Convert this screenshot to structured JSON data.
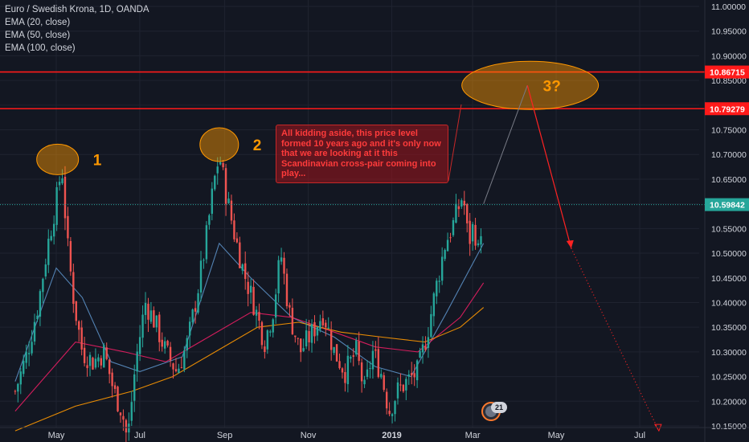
{
  "legend": {
    "symbol": "Euro / Swedish Krona, 1D, OANDA",
    "indicators": [
      "EMA (20, close)",
      "EMA (50, close)",
      "EMA (100, close)"
    ]
  },
  "colors": {
    "background": "#131722",
    "up": "#26a69a",
    "down": "#ef5350",
    "ema20": "#5b8fc4",
    "ema50": "#e91e63",
    "ema100": "#ff9800",
    "hline": "#ff1a1a",
    "current_price": "#26a69a",
    "projection": "#ff2222",
    "highlight": "#ff9800"
  },
  "annotations": {
    "callout_text": "All kidding aside, this price level formed 10 years ago and it's only now that we are looking at it this Scandinavian cross-pair coming into play...",
    "labels": [
      "1",
      "2",
      "3?"
    ],
    "badge_count": "21"
  },
  "chart_data": {
    "type": "candlestick",
    "title": "Euro / Swedish Krona, 1D, OANDA",
    "x_ticks": [
      "May",
      "Jul",
      "Sep",
      "Nov",
      "2019",
      "Mar",
      "May",
      "Jul"
    ],
    "y_ticks": [
      "11.00000",
      "10.95000",
      "10.90000",
      "10.85000",
      "10.80000",
      "10.75000",
      "10.70000",
      "10.65000",
      "10.60000",
      "10.55000",
      "10.50000",
      "10.45000",
      "10.40000",
      "10.35000",
      "10.30000",
      "10.25000",
      "10.20000",
      "10.15000"
    ],
    "ylim": [
      10.11,
      11.01
    ],
    "price_labels": [
      {
        "text": "10.86715",
        "value": 10.86715,
        "kind": "resistance"
      },
      {
        "text": "10.79279",
        "value": 10.79279,
        "kind": "resistance"
      },
      {
        "text": "10.59842",
        "value": 10.59842,
        "kind": "current"
      }
    ],
    "close_path": [
      {
        "date": "2018-04-01",
        "close": 10.22
      },
      {
        "date": "2018-04-10",
        "close": 10.3
      },
      {
        "date": "2018-04-18",
        "close": 10.4
      },
      {
        "date": "2018-04-25",
        "close": 10.52
      },
      {
        "date": "2018-05-02",
        "close": 10.62
      },
      {
        "date": "2018-05-05",
        "close": 10.68
      },
      {
        "date": "2018-05-09",
        "close": 10.52
      },
      {
        "date": "2018-05-14",
        "close": 10.4
      },
      {
        "date": "2018-05-20",
        "close": 10.3
      },
      {
        "date": "2018-05-28",
        "close": 10.28
      },
      {
        "date": "2018-06-05",
        "close": 10.3
      },
      {
        "date": "2018-06-12",
        "close": 10.22
      },
      {
        "date": "2018-06-18",
        "close": 10.18
      },
      {
        "date": "2018-06-22",
        "close": 10.12
      },
      {
        "date": "2018-06-28",
        "close": 10.28
      },
      {
        "date": "2018-07-05",
        "close": 10.4
      },
      {
        "date": "2018-07-12",
        "close": 10.36
      },
      {
        "date": "2018-07-20",
        "close": 10.3
      },
      {
        "date": "2018-07-28",
        "close": 10.26
      },
      {
        "date": "2018-08-05",
        "close": 10.32
      },
      {
        "date": "2018-08-12",
        "close": 10.42
      },
      {
        "date": "2018-08-18",
        "close": 10.52
      },
      {
        "date": "2018-08-24",
        "close": 10.64
      },
      {
        "date": "2018-08-28",
        "close": 10.7
      },
      {
        "date": "2018-09-02",
        "close": 10.62
      },
      {
        "date": "2018-09-08",
        "close": 10.54
      },
      {
        "date": "2018-09-15",
        "close": 10.46
      },
      {
        "date": "2018-09-22",
        "close": 10.4
      },
      {
        "date": "2018-09-30",
        "close": 10.32
      },
      {
        "date": "2018-10-06",
        "close": 10.38
      },
      {
        "date": "2018-10-12",
        "close": 10.5
      },
      {
        "date": "2018-10-18",
        "close": 10.38
      },
      {
        "date": "2018-10-26",
        "close": 10.3
      },
      {
        "date": "2018-11-04",
        "close": 10.34
      },
      {
        "date": "2018-11-12",
        "close": 10.38
      },
      {
        "date": "2018-11-20",
        "close": 10.3
      },
      {
        "date": "2018-11-28",
        "close": 10.26
      },
      {
        "date": "2018-12-06",
        "close": 10.3
      },
      {
        "date": "2018-12-12",
        "close": 10.22
      },
      {
        "date": "2018-12-18",
        "close": 10.3
      },
      {
        "date": "2018-12-24",
        "close": 10.26
      },
      {
        "date": "2018-12-30",
        "close": 10.18
      },
      {
        "date": "2019-01-05",
        "close": 10.22
      },
      {
        "date": "2019-01-12",
        "close": 10.24
      },
      {
        "date": "2019-01-20",
        "close": 10.26
      },
      {
        "date": "2019-01-27",
        "close": 10.34
      },
      {
        "date": "2019-02-03",
        "close": 10.44
      },
      {
        "date": "2019-02-09",
        "close": 10.52
      },
      {
        "date": "2019-02-15",
        "close": 10.56
      },
      {
        "date": "2019-02-22",
        "close": 10.62
      },
      {
        "date": "2019-02-26",
        "close": 10.52
      },
      {
        "date": "2019-03-02",
        "close": 10.56
      },
      {
        "date": "2019-03-05",
        "close": 10.5
      },
      {
        "date": "2019-03-09",
        "close": 10.6
      }
    ],
    "ema_series": [
      {
        "name": "EMA (20, close)",
        "color": "#5b8fc4",
        "points": [
          [
            "2018-04-01",
            10.24
          ],
          [
            "2018-05-01",
            10.47
          ],
          [
            "2018-05-20",
            10.41
          ],
          [
            "2018-06-10",
            10.28
          ],
          [
            "2018-07-01",
            10.26
          ],
          [
            "2018-08-01",
            10.29
          ],
          [
            "2018-08-28",
            10.52
          ],
          [
            "2018-09-20",
            10.45
          ],
          [
            "2018-10-20",
            10.37
          ],
          [
            "2018-11-20",
            10.33
          ],
          [
            "2018-12-20",
            10.27
          ],
          [
            "2019-01-15",
            10.25
          ],
          [
            "2019-02-10",
            10.38
          ],
          [
            "2019-03-09",
            10.52
          ]
        ]
      },
      {
        "name": "EMA (50, close)",
        "color": "#e91e63",
        "points": [
          [
            "2018-04-01",
            10.18
          ],
          [
            "2018-05-15",
            10.32
          ],
          [
            "2018-06-20",
            10.3
          ],
          [
            "2018-07-20",
            10.28
          ],
          [
            "2018-08-20",
            10.33
          ],
          [
            "2018-09-20",
            10.38
          ],
          [
            "2018-10-20",
            10.37
          ],
          [
            "2018-11-20",
            10.34
          ],
          [
            "2018-12-20",
            10.31
          ],
          [
            "2019-01-20",
            10.3
          ],
          [
            "2019-02-20",
            10.37
          ],
          [
            "2019-03-09",
            10.44
          ]
        ]
      },
      {
        "name": "EMA (100, close)",
        "color": "#ff9800",
        "points": [
          [
            "2018-04-01",
            10.14
          ],
          [
            "2018-05-15",
            10.19
          ],
          [
            "2018-06-25",
            10.22
          ],
          [
            "2018-07-25",
            10.25
          ],
          [
            "2018-08-25",
            10.3
          ],
          [
            "2018-09-25",
            10.35
          ],
          [
            "2018-10-25",
            10.36
          ],
          [
            "2018-11-25",
            10.34
          ],
          [
            "2018-12-25",
            10.33
          ],
          [
            "2019-01-25",
            10.32
          ],
          [
            "2019-02-20",
            10.35
          ],
          [
            "2019-03-09",
            10.39
          ]
        ]
      }
    ],
    "projection": {
      "from": [
        "2019-03-09",
        10.6
      ],
      "peak": [
        "2019-04-10",
        10.84
      ],
      "mid": [
        "2019-05-12",
        10.51
      ],
      "end": [
        "2019-07-15",
        10.14
      ]
    },
    "highlight_zones": [
      {
        "label": "1",
        "center": [
          "2018-05-02",
          10.69
        ]
      },
      {
        "label": "2",
        "center": [
          "2018-08-28",
          10.72
        ]
      },
      {
        "label": "3?",
        "center": [
          "2019-04-12",
          10.84
        ]
      }
    ]
  }
}
